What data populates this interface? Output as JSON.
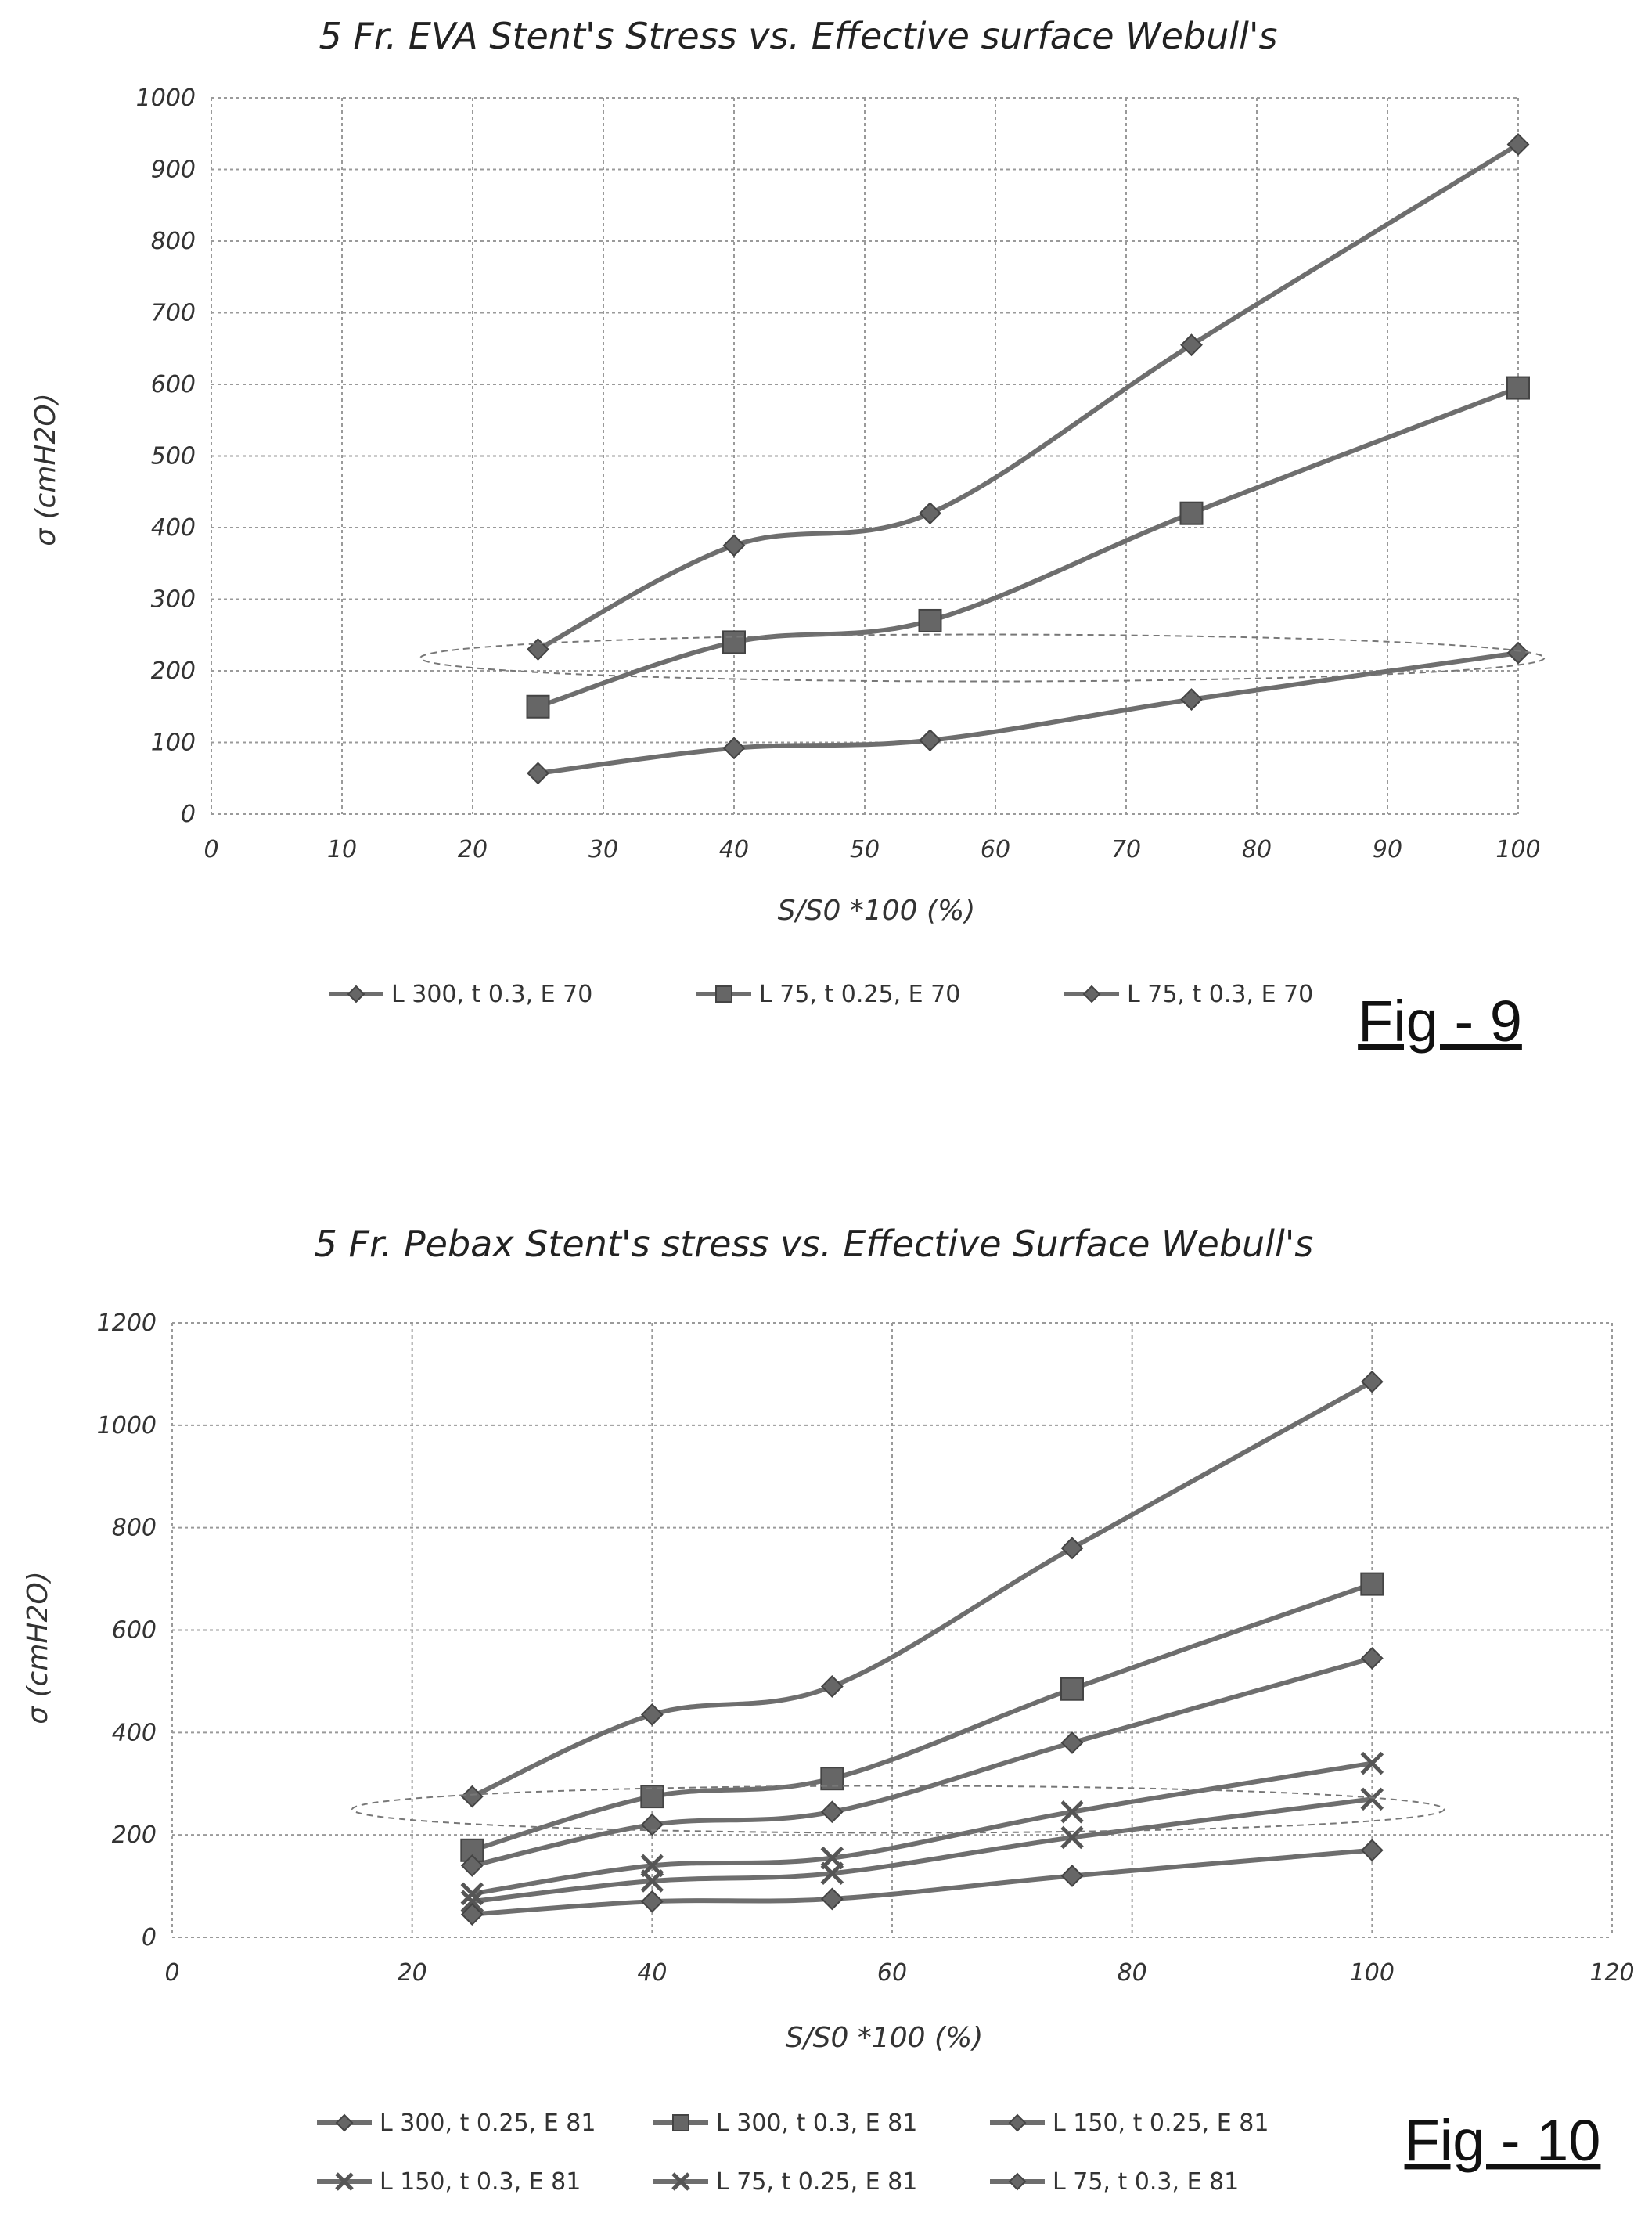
{
  "chart_data": [
    {
      "type": "line",
      "title": "5 Fr. EVA Stent's Stress vs. Effective surface Webull's",
      "xlabel": "S/S0 *100 (%)",
      "ylabel": "σ (cmH2O)",
      "xlim": [
        0,
        100
      ],
      "ylim": [
        0,
        1000
      ],
      "xticks": [
        0,
        10,
        20,
        30,
        40,
        50,
        60,
        70,
        80,
        90,
        100
      ],
      "yticks": [
        0,
        100,
        200,
        300,
        400,
        500,
        600,
        700,
        800,
        900,
        1000
      ],
      "grid": true,
      "legend_position": "bottom",
      "figure_label": "Fig - 9",
      "series": [
        {
          "name": "L 300, t 0.3, E 70",
          "marker": "diamond",
          "x": [
            25,
            40,
            55,
            75,
            100
          ],
          "y": [
            230,
            375,
            420,
            655,
            935
          ]
        },
        {
          "name": "L 75, t 0.25, E 70",
          "marker": "square",
          "x": [
            25,
            40,
            55,
            75,
            100
          ],
          "y": [
            150,
            240,
            270,
            420,
            595
          ]
        },
        {
          "name": "L 75, t 0.3, E 70",
          "marker": "diamond",
          "x": [
            25,
            40,
            55,
            75,
            100
          ],
          "y": [
            57,
            92,
            103,
            160,
            225
          ]
        }
      ],
      "annotations": [
        {
          "type": "dashed-ellipse",
          "x_range": [
            16,
            102
          ],
          "y_center": 218
        }
      ]
    },
    {
      "type": "line",
      "title": "5 Fr. Pebax Stent's stress vs. Effective Surface Webull's",
      "xlabel": "S/S0 *100 (%)",
      "ylabel": "σ (cmH2O)",
      "xlim": [
        0,
        120
      ],
      "ylim": [
        0,
        1200
      ],
      "xticks": [
        0,
        20,
        40,
        60,
        80,
        100,
        120
      ],
      "yticks": [
        0,
        200,
        400,
        600,
        800,
        1000,
        1200
      ],
      "grid": true,
      "legend_position": "bottom",
      "figure_label": "Fig - 10",
      "series": [
        {
          "name": "L 300, t 0.25, E 81",
          "marker": "diamond",
          "x": [
            25,
            40,
            55,
            75,
            100
          ],
          "y": [
            275,
            435,
            490,
            760,
            1085
          ]
        },
        {
          "name": "L 300, t 0.3, E 81",
          "marker": "square",
          "x": [
            25,
            40,
            55,
            75,
            100
          ],
          "y": [
            170,
            275,
            310,
            485,
            690
          ]
        },
        {
          "name": "L 150, t 0.25, E 81",
          "marker": "diamond",
          "x": [
            25,
            40,
            55,
            75,
            100
          ],
          "y": [
            140,
            220,
            245,
            380,
            545
          ]
        },
        {
          "name": "L 150, t 0.3, E 81",
          "marker": "x",
          "x": [
            25,
            40,
            55,
            75,
            100
          ],
          "y": [
            85,
            140,
            155,
            245,
            340
          ]
        },
        {
          "name": "L 75, t 0.25, E 81",
          "marker": "x",
          "x": [
            25,
            40,
            55,
            75,
            100
          ],
          "y": [
            70,
            110,
            125,
            195,
            270
          ]
        },
        {
          "name": "L 75, t 0.3, E 81",
          "marker": "diamond",
          "x": [
            25,
            40,
            55,
            75,
            100
          ],
          "y": [
            45,
            70,
            75,
            120,
            170
          ]
        }
      ],
      "annotations": [
        {
          "type": "dashed-ellipse",
          "x_range": [
            15,
            106
          ],
          "y_center": 250
        }
      ]
    }
  ]
}
